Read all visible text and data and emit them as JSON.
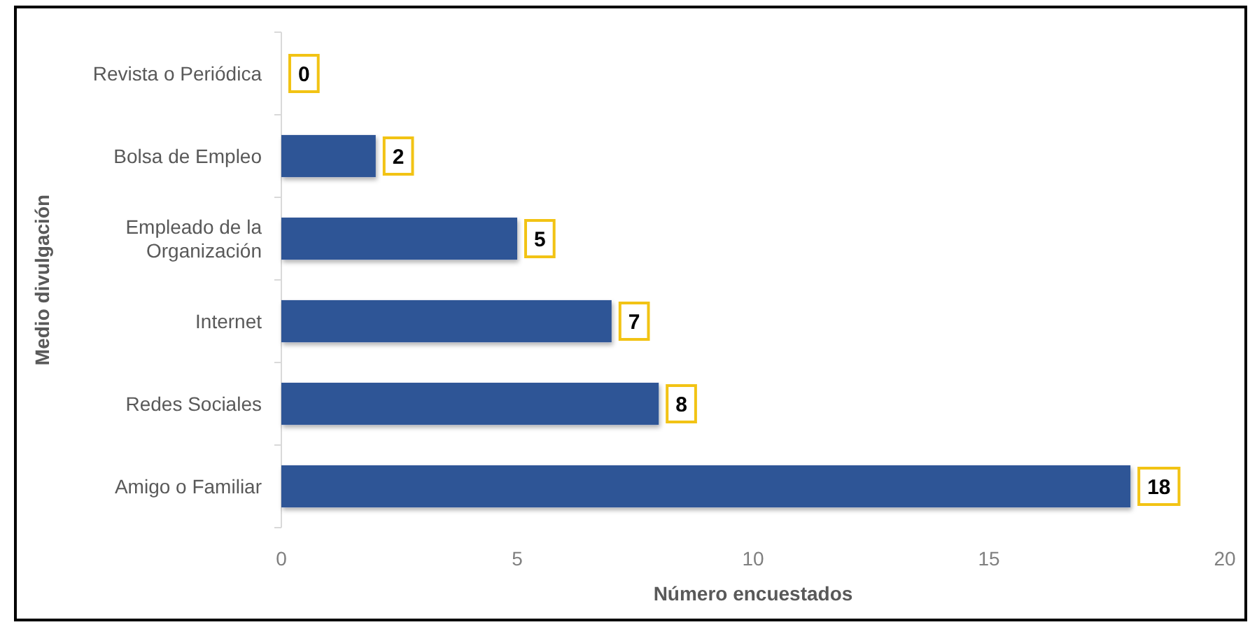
{
  "chart_data": {
    "type": "bar",
    "orientation": "horizontal",
    "categories": [
      "Revista o Periódica",
      "Bolsa de Empleo",
      "Empleado de la Organización",
      "Internet",
      "Redes Sociales",
      "Amigo o Familiar"
    ],
    "values": [
      0,
      2,
      5,
      7,
      8,
      18
    ],
    "color": "#2e5596",
    "xlim": [
      0,
      20
    ],
    "xticks": [
      0,
      5,
      10,
      15,
      20
    ],
    "xlabel": "Número encuestados",
    "ylabel": "Medio divulgación",
    "data_labels": true
  }
}
